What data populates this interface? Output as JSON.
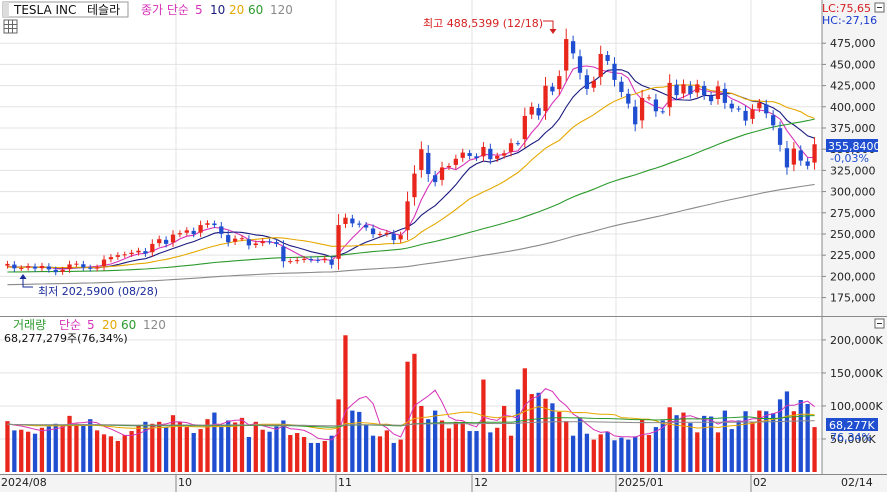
{
  "header": {
    "symbol": "TESLA INC",
    "symbol_kr": "테슬라",
    "indicator_label": "종가 단순",
    "ma_periods": [
      "5",
      "10",
      "20",
      "60",
      "120"
    ],
    "lc": "LC:75,65",
    "hc": "HC:-27,16"
  },
  "annotations": {
    "high": "최고 488,5399 (12/18)",
    "low": "최저 202,5900 (08/28)",
    "last_price": "355,8400",
    "last_change": "-0,03%"
  },
  "volume_panel": {
    "title": "거래량",
    "ma_label": "단순",
    "ma_periods": [
      "5",
      "20",
      "60",
      "120"
    ],
    "value_text": "68,277,279주(76,34%)",
    "last_value": "68,277K",
    "last_pct": "76,34%"
  },
  "x_labels": [
    "2024/08",
    "10",
    "11",
    "12",
    "2025/01",
    "02",
    "02/14"
  ],
  "colors": {
    "up": "#e8261c",
    "down": "#1f4fd0",
    "ma5": "#d633b8",
    "ma10": "#1a1a80",
    "ma20": "#e6a800",
    "ma60": "#2d9a2d",
    "ma120": "#8a8a8a",
    "annotation": "#d62020",
    "low_annotation": "#1a2a9a"
  },
  "chart_data": [
    {
      "type": "candlestick",
      "title": "TESLA INC 테슬라",
      "y_ticks": [
        175000,
        200000,
        225000,
        250000,
        275000,
        300000,
        325000,
        350000,
        375000,
        400000,
        425000,
        450000,
        475000
      ],
      "y_tick_labels": [
        "175,000",
        "200,000",
        "225,000",
        "250,000",
        "275,000",
        "300,000",
        "325,000",
        "350,000",
        "375,000",
        "400,000",
        "425,000",
        "450,000",
        "475,000"
      ],
      "ylim": [
        158000,
        500000
      ],
      "close": [
        214.7,
        209.5,
        210.0,
        212.0,
        209.2,
        212.3,
        208.3,
        205.0,
        207.6,
        214.1,
        215.0,
        210.7,
        209.0,
        210.6,
        219.8,
        222.7,
        225.0,
        226.0,
        227.9,
        230.3,
        226.8,
        238.3,
        243.9,
        238.4,
        249.2,
        251.0,
        254.3,
        250.0,
        260.5,
        262.7,
        260.5,
        250.2,
        240.3,
        244.5,
        245.0,
        236.6,
        238.8,
        241.5,
        240.8,
        238.3,
        217.8,
        218.0,
        219.2,
        220.7,
        219.6,
        218.9,
        220.9,
        213.7,
        260.5,
        269.2,
        262.5,
        261.0,
        257.6,
        249.8,
        249.9,
        251.4,
        242.8,
        248.5,
        288.5,
        321.2,
        350.0,
        320.7,
        311.2,
        328.5,
        330.2,
        338.7,
        346.0,
        342.0,
        339.6,
        352.6,
        338.2,
        342.0,
        345.2,
        357.1,
        357.0,
        389.2,
        400.0,
        389.8,
        424.8,
        418.1,
        436.2,
        479.9,
        463.0,
        440.1,
        421.1,
        430.6,
        462.3,
        454.1,
        431.7,
        417.4,
        403.8,
        379.3,
        410.4,
        411.1,
        394.7,
        394.4,
        428.2,
        413.8,
        426.5,
        415.1,
        426.5,
        413.9,
        406.6,
        424.1,
        404.6,
        398.1,
        397.2,
        383.7,
        397.1,
        404.6,
        392.2,
        378.2,
        355.1,
        328.5,
        350.7,
        336.5,
        330.4,
        355.8
      ],
      "ma_series": [
        {
          "name": "5",
          "color_key": "ma5"
        },
        {
          "name": "10",
          "color_key": "ma10"
        },
        {
          "name": "20",
          "color_key": "ma20"
        },
        {
          "name": "60",
          "color_key": "ma60"
        },
        {
          "name": "120",
          "color_key": "ma120"
        }
      ]
    },
    {
      "type": "bar",
      "title": "거래량",
      "y_ticks": [
        50000000,
        100000000,
        150000000,
        200000000
      ],
      "y_tick_labels": [
        "50,000K",
        "100,000K",
        "150,000K",
        "200,000K"
      ],
      "ylim": [
        0,
        215000000
      ],
      "values": [
        77,
        63,
        64,
        61,
        58,
        67,
        69,
        73,
        71,
        85,
        73,
        72,
        80,
        63,
        57,
        54,
        47,
        56,
        62,
        71,
        76,
        73,
        76,
        68,
        86,
        76,
        68,
        59,
        65,
        80,
        90,
        69,
        78,
        75,
        82,
        53,
        76,
        64,
        61,
        69,
        78,
        56,
        59,
        53,
        44,
        44,
        47,
        55,
        110,
        207,
        93,
        91,
        71,
        55,
        54,
        63,
        44,
        49,
        167,
        179,
        100,
        80,
        93,
        78,
        66,
        76,
        76,
        62,
        62,
        140,
        60,
        67,
        100,
        55,
        125,
        157,
        118,
        120,
        111,
        104,
        91,
        77,
        55,
        81,
        58,
        49,
        57,
        61,
        48,
        52,
        49,
        54,
        80,
        56,
        68,
        78,
        98,
        86,
        90,
        74,
        60,
        85,
        84,
        60,
        93,
        65,
        78,
        92,
        75,
        93,
        92,
        89,
        110,
        122,
        92,
        109,
        103,
        68
      ],
      "volume_unit": "millions of shares"
    }
  ]
}
